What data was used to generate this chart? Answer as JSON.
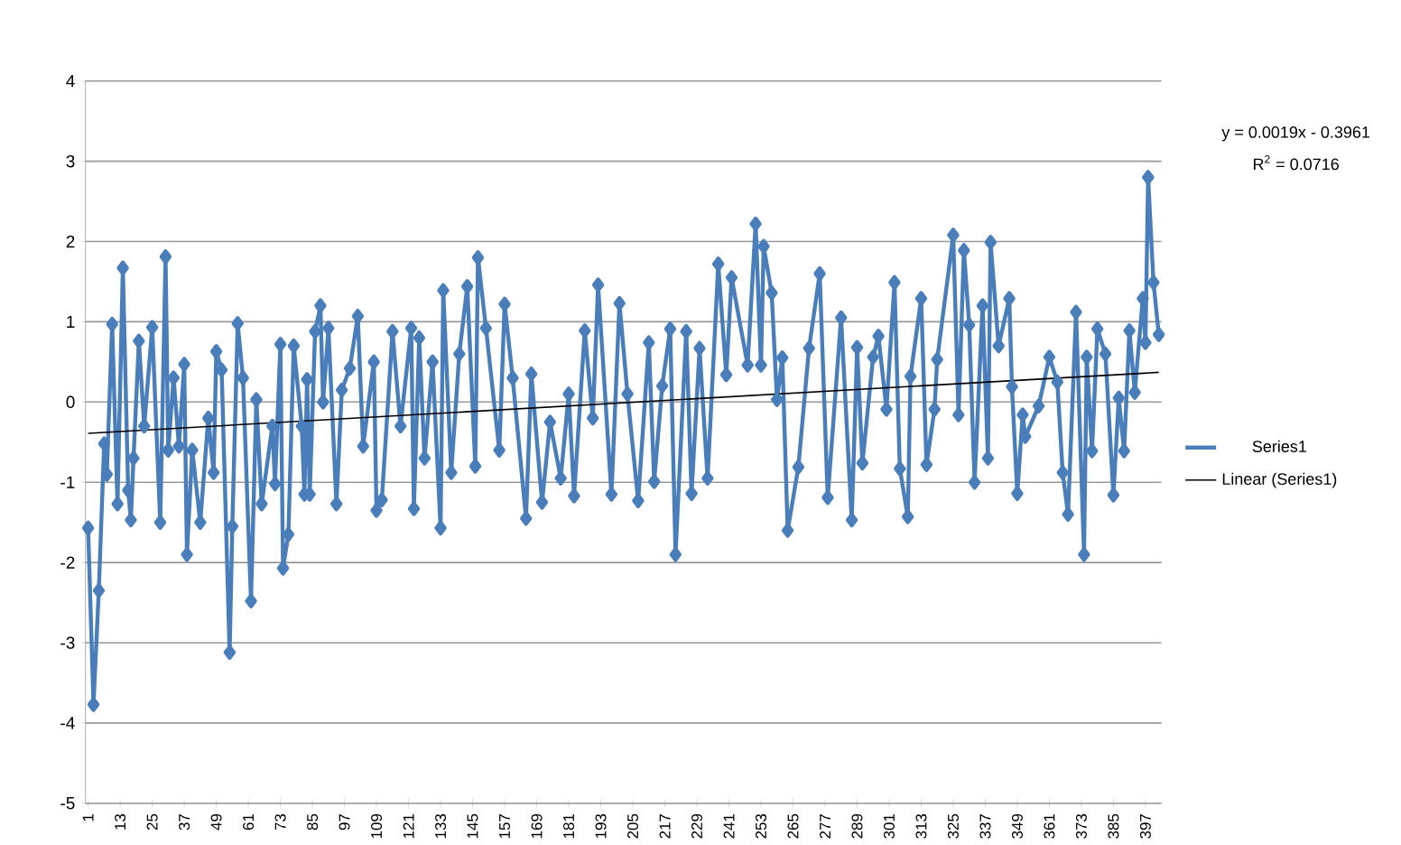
{
  "chart_data": {
    "type": "line",
    "xlim": [
      0,
      403
    ],
    "ylim": [
      -5,
      4
    ],
    "xticks": [
      1,
      13,
      25,
      37,
      49,
      61,
      73,
      85,
      97,
      109,
      121,
      133,
      145,
      157,
      169,
      181,
      193,
      205,
      217,
      229,
      241,
      253,
      265,
      277,
      289,
      301,
      313,
      325,
      337,
      349,
      361,
      373,
      385,
      397
    ],
    "yticks": [
      -5,
      -4,
      -3,
      -2,
      -1,
      0,
      1,
      2,
      3,
      4
    ],
    "grid": "y",
    "legend": "right",
    "marker": "diamond",
    "line_style": "solid",
    "annotations": [
      "y = 0.0019x - 0.3961",
      "R$^{2}$ = 0.0716"
    ],
    "series": [
      {
        "name": "Series1",
        "color": "#4a7ebb",
        "x": [
          1,
          3,
          5,
          7,
          8,
          10,
          12,
          14,
          16,
          17,
          18,
          20,
          22,
          25,
          28,
          30,
          31,
          33,
          35,
          37,
          38,
          40,
          43,
          46,
          48,
          49,
          51,
          54,
          55,
          57,
          59,
          62,
          64,
          66,
          70,
          71,
          73,
          74,
          76,
          78,
          81,
          82,
          83,
          84,
          86,
          88,
          89,
          91,
          94,
          96,
          99,
          102,
          104,
          108,
          109,
          111,
          115,
          118,
          122,
          123,
          125,
          127,
          130,
          133,
          134,
          137,
          140,
          143,
          146,
          147,
          150,
          155,
          157,
          160,
          165,
          167,
          171,
          174,
          178,
          181,
          183,
          187,
          190,
          192,
          197,
          200,
          203,
          207,
          211,
          213,
          216,
          219,
          221,
          225,
          227,
          230,
          233,
          237,
          240,
          242,
          248,
          251,
          253,
          254,
          257,
          259,
          261,
          263,
          267,
          271,
          275,
          278,
          283,
          287,
          289,
          291,
          295,
          297,
          300,
          303,
          305,
          308,
          309,
          313,
          315,
          318,
          319,
          325,
          327,
          329,
          331,
          333,
          336,
          338,
          339,
          342,
          346,
          347,
          349,
          351,
          352,
          357,
          361,
          364,
          366,
          368,
          371,
          374,
          375,
          377,
          379,
          382,
          385,
          387,
          389,
          391,
          393,
          396,
          397,
          398,
          400,
          402
        ],
        "values": [
          -1.57,
          -3.77,
          -2.35,
          -0.52,
          -0.9,
          0.97,
          -1.27,
          1.67,
          -1.1,
          -1.47,
          -0.7,
          0.76,
          -0.3,
          0.93,
          -1.5,
          1.81,
          -0.6,
          0.3,
          -0.55,
          0.47,
          -1.9,
          -0.6,
          -1.5,
          -0.2,
          -0.88,
          0.63,
          0.4,
          -3.12,
          -1.55,
          0.98,
          0.3,
          -2.48,
          0.03,
          -1.27,
          -0.3,
          -1.02,
          0.72,
          -2.07,
          -1.65,
          0.7,
          -0.3,
          -1.15,
          0.28,
          -1.15,
          0.88,
          1.2,
          0.0,
          0.92,
          -1.27,
          0.15,
          0.42,
          1.07,
          -0.55,
          0.5,
          -1.35,
          -1.22,
          0.88,
          -0.3,
          0.92,
          -1.33,
          0.8,
          -0.7,
          0.5,
          -1.57,
          1.39,
          -0.88,
          0.6,
          1.44,
          -0.8,
          1.8,
          0.92,
          -0.6,
          1.22,
          0.3,
          -1.45,
          0.35,
          -1.25,
          -0.25,
          -0.95,
          0.1,
          -1.17,
          0.89,
          -0.2,
          1.46,
          -1.15,
          1.23,
          0.1,
          -1.23,
          0.74,
          -0.99,
          0.2,
          0.91,
          -1.9,
          0.88,
          -1.14,
          0.67,
          -0.95,
          1.72,
          0.34,
          1.55,
          0.46,
          2.22,
          0.46,
          1.94,
          1.36,
          0.03,
          0.55,
          -1.6,
          -0.81,
          0.67,
          1.6,
          -1.19,
          1.05,
          -1.47,
          0.68,
          -0.76,
          0.56,
          0.82,
          -0.09,
          1.49,
          -0.83,
          -1.43,
          0.32,
          1.29,
          -0.78,
          -0.09,
          0.53,
          2.08,
          -0.16,
          1.89,
          0.96,
          -1.0,
          1.2,
          -0.7,
          1.99,
          0.7,
          1.29,
          0.19,
          -1.14,
          -0.16,
          -0.43,
          -0.05,
          0.56,
          0.25,
          -0.88,
          -1.4,
          1.12,
          -1.9,
          0.56,
          -0.61,
          0.91,
          0.6,
          -1.16,
          0.05,
          -0.61,
          0.89,
          0.12,
          1.29,
          0.74,
          2.8,
          1.49,
          0.84
        ]
      },
      {
        "name": "Linear (Series1)",
        "type": "line",
        "color": "#000000",
        "marker": "none",
        "x": [
          1,
          402
        ],
        "values": [
          -0.39,
          0.37
        ]
      }
    ]
  }
}
